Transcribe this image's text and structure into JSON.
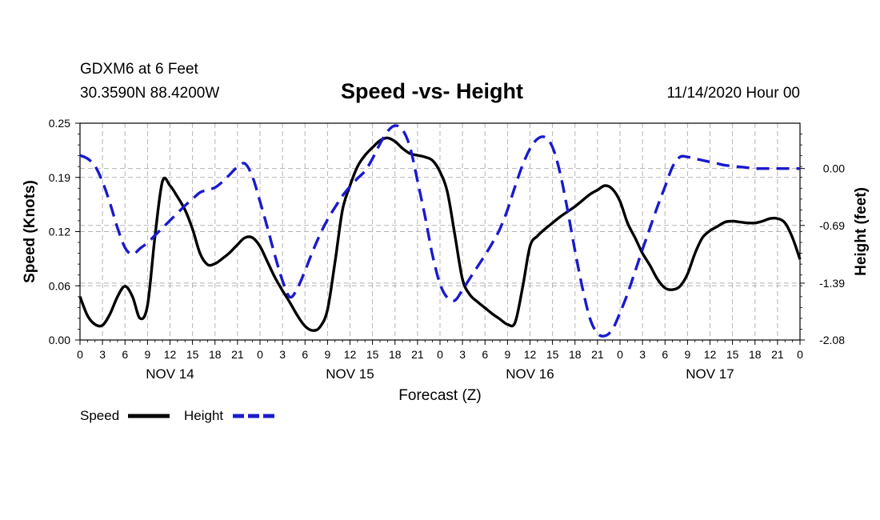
{
  "header": {
    "station": "GDXM6 at 6 Feet",
    "coords": "30.3590N 88.4200W",
    "title": "Speed -vs- Height",
    "timestamp": "11/14/2020 Hour 00"
  },
  "chart_data": {
    "type": "line",
    "title": "Speed -vs- Height",
    "xlabel": "Forecast (Z)",
    "ylabel_left": "Speed (Knots)",
    "ylabel_right": "Height (feet)",
    "x_range_hours": [
      0,
      96
    ],
    "x_tick_labels": [
      "0",
      "3",
      "6",
      "9",
      "12",
      "15",
      "18",
      "21",
      "0",
      "3",
      "6",
      "9",
      "12",
      "15",
      "18",
      "21",
      "0",
      "3",
      "6",
      "9",
      "12",
      "15",
      "18",
      "21",
      "0",
      "3",
      "6",
      "9",
      "12",
      "15",
      "18",
      "21",
      "0"
    ],
    "day_labels": [
      {
        "label": "NOV 14",
        "hour": 12
      },
      {
        "label": "NOV 15",
        "hour": 36
      },
      {
        "label": "NOV 16",
        "hour": 60
      },
      {
        "label": "NOV 17",
        "hour": 84
      }
    ],
    "ylim_left": [
      0,
      0.25
    ],
    "y_ticks_left": [
      "0.00",
      "0.06",
      "0.12",
      "0.19",
      "0.25"
    ],
    "ylim_right": [
      -2.08,
      0.55
    ],
    "y_ticks_right": [
      "-2.08",
      "-1.39",
      "-0.69",
      "0.00"
    ],
    "legend": [
      "Speed",
      "Height"
    ],
    "colors": {
      "Speed": "#000000",
      "Height": "#1a1acd"
    },
    "series": [
      {
        "name": "Speed",
        "axis": "left",
        "x": [
          0,
          1,
          2,
          3,
          4,
          5,
          6,
          7,
          8,
          9,
          10,
          11,
          12,
          13,
          14,
          15,
          16,
          17,
          18,
          19,
          20,
          21,
          22,
          23,
          24,
          25,
          26,
          27,
          28,
          29,
          30,
          31,
          32,
          33,
          34,
          35,
          36,
          37,
          38,
          39,
          40,
          41,
          42,
          43,
          44,
          45,
          46,
          47,
          48,
          49,
          50,
          51,
          52,
          53,
          54,
          55,
          56,
          57,
          58,
          59,
          60,
          61,
          62,
          63,
          64,
          65,
          66,
          67,
          68,
          69,
          70,
          71,
          72,
          73,
          74,
          75,
          76,
          77,
          78,
          79,
          80,
          81,
          82,
          83,
          84,
          85,
          86,
          87,
          88,
          89,
          90,
          91,
          92,
          93,
          94,
          95,
          96
        ],
        "values": [
          0.05,
          0.028,
          0.018,
          0.017,
          0.03,
          0.05,
          0.062,
          0.05,
          0.025,
          0.04,
          0.12,
          0.183,
          0.178,
          0.165,
          0.15,
          0.128,
          0.1,
          0.087,
          0.088,
          0.094,
          0.101,
          0.11,
          0.118,
          0.118,
          0.108,
          0.09,
          0.072,
          0.057,
          0.043,
          0.028,
          0.016,
          0.011,
          0.015,
          0.035,
          0.09,
          0.15,
          0.178,
          0.2,
          0.213,
          0.222,
          0.23,
          0.233,
          0.229,
          0.221,
          0.215,
          0.213,
          0.211,
          0.207,
          0.194,
          0.17,
          0.12,
          0.07,
          0.052,
          0.044,
          0.037,
          0.03,
          0.024,
          0.018,
          0.02,
          0.06,
          0.108,
          0.12,
          0.128,
          0.135,
          0.142,
          0.148,
          0.154,
          0.161,
          0.168,
          0.173,
          0.178,
          0.174,
          0.16,
          0.135,
          0.118,
          0.1,
          0.086,
          0.07,
          0.06,
          0.058,
          0.062,
          0.076,
          0.1,
          0.118,
          0.126,
          0.131,
          0.136,
          0.137,
          0.136,
          0.135,
          0.135,
          0.137,
          0.14,
          0.14,
          0.135,
          0.118,
          0.093
        ]
      },
      {
        "name": "Height",
        "axis": "right",
        "x": [
          0,
          1,
          2,
          3,
          4,
          5,
          6,
          7,
          8,
          9,
          10,
          11,
          12,
          13,
          14,
          15,
          16,
          17,
          18,
          19,
          20,
          21,
          22,
          23,
          24,
          25,
          26,
          27,
          28,
          29,
          30,
          31,
          32,
          33,
          34,
          35,
          36,
          37,
          38,
          39,
          40,
          41,
          42,
          43,
          44,
          45,
          46,
          47,
          48,
          49,
          50,
          51,
          52,
          53,
          54,
          55,
          56,
          57,
          58,
          59,
          60,
          61,
          62,
          63,
          64,
          65,
          66,
          67,
          68,
          69,
          70,
          71,
          72,
          73,
          74,
          75,
          76,
          77,
          78,
          79,
          80,
          81,
          82,
          83,
          84,
          85,
          86,
          87,
          88,
          89,
          90,
          91,
          92,
          93,
          94,
          95,
          96
        ],
        "values": [
          0.16,
          0.12,
          0.03,
          -0.16,
          -0.42,
          -0.72,
          -0.96,
          -1.04,
          -0.97,
          -0.9,
          -0.81,
          -0.72,
          -0.63,
          -0.54,
          -0.45,
          -0.37,
          -0.29,
          -0.26,
          -0.23,
          -0.16,
          -0.07,
          0.02,
          0.06,
          -0.1,
          -0.4,
          -0.72,
          -1.06,
          -1.36,
          -1.56,
          -1.45,
          -1.24,
          -1.01,
          -0.8,
          -0.62,
          -0.47,
          -0.33,
          -0.22,
          -0.12,
          -0.03,
          0.12,
          0.3,
          0.45,
          0.52,
          0.47,
          0.26,
          -0.15,
          -0.58,
          -1.05,
          -1.4,
          -1.57,
          -1.6,
          -1.47,
          -1.33,
          -1.19,
          -1.05,
          -0.9,
          -0.73,
          -0.5,
          -0.22,
          0.04,
          0.24,
          0.36,
          0.38,
          0.26,
          -0.05,
          -0.5,
          -1.0,
          -1.45,
          -1.82,
          -2.0,
          -2.03,
          -1.95,
          -1.75,
          -1.52,
          -1.25,
          -0.98,
          -0.72,
          -0.46,
          -0.22,
          0.02,
          0.14,
          0.14,
          0.12,
          0.1,
          0.08,
          0.06,
          0.04,
          0.03,
          0.02,
          0.01,
          0.0,
          0.0,
          0.0,
          0.0,
          0.0,
          0.0,
          0.0
        ]
      }
    ]
  }
}
